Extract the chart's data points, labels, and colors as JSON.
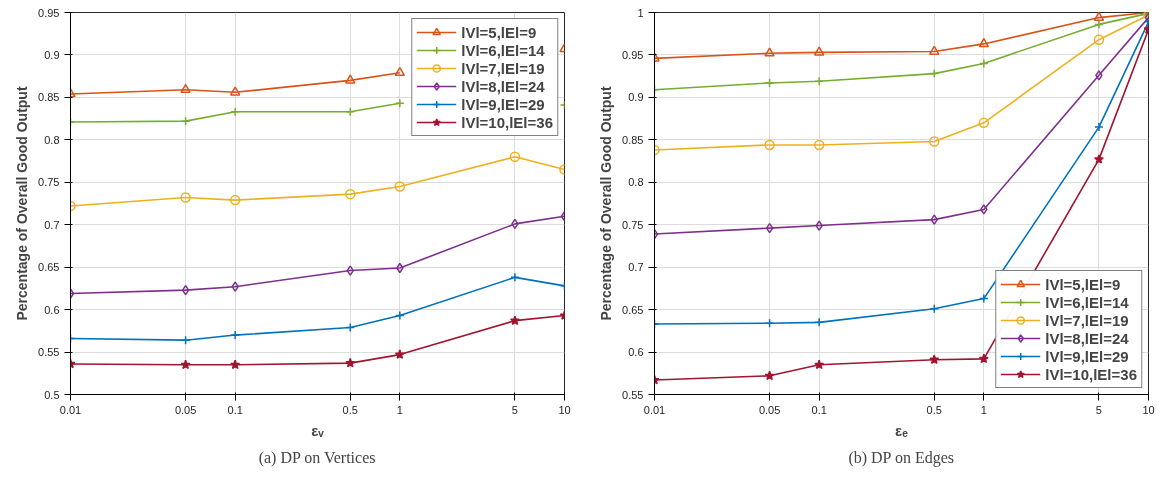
{
  "chart_data": [
    {
      "type": "line",
      "xlabel": "εᵥ",
      "ylabel": "Percentage of Overall Good Output",
      "annotations": [
        "(a) DP on Vertices"
      ],
      "x": [
        0.01,
        0.05,
        0.1,
        0.5,
        1,
        5,
        10
      ],
      "xlim": [
        0.01,
        10
      ],
      "xticks": [
        0.01,
        0.05,
        0.1,
        0.5,
        1,
        5,
        10
      ],
      "log": "x",
      "ylim": [
        0.5,
        0.95
      ],
      "yticks": [
        0.5,
        0.55,
        0.6,
        0.65,
        0.7,
        0.75,
        0.8,
        0.85,
        0.9,
        0.95
      ],
      "grid": true,
      "legend": "top right",
      "series": [
        {
          "name": "lVl=5,lEl=9",
          "color": "#d95319",
          "marker": "triangle",
          "values": [
            0.854,
            0.859,
            0.856,
            0.87,
            0.879,
            null,
            0.907
          ]
        },
        {
          "name": "lVl=6,lEl=14",
          "color": "#77ac30",
          "marker": "cross",
          "values": [
            0.821,
            0.822,
            0.833,
            0.833,
            0.843,
            null,
            0.841
          ]
        },
        {
          "name": "lVl=7,lEl=19",
          "color": "#edb120",
          "marker": "circle",
          "values": [
            0.722,
            0.732,
            0.729,
            0.736,
            0.745,
            0.78,
            0.765
          ]
        },
        {
          "name": "lVl=8,lEl=24",
          "color": "#7e2f8e",
          "marker": "diamond",
          "values": [
            0.619,
            0.623,
            0.627,
            0.646,
            0.649,
            0.701,
            0.71
          ]
        },
        {
          "name": "lVl=9,lEl=29",
          "color": "#0072bd",
          "marker": "cross",
          "values": [
            0.566,
            0.564,
            0.57,
            0.579,
            0.593,
            0.638,
            0.628
          ]
        },
        {
          "name": "lVl=10,lEl=36",
          "color": "#a2142f",
          "marker": "star",
          "values": [
            0.536,
            0.535,
            0.535,
            0.537,
            0.547,
            0.587,
            0.593
          ]
        }
      ]
    },
    {
      "type": "line",
      "xlabel": "εₑ",
      "ylabel": "Percentage of Overall Good Output",
      "annotations": [
        "(b) DP on Edges"
      ],
      "x": [
        0.01,
        0.05,
        0.1,
        0.5,
        1,
        5,
        10
      ],
      "xlim": [
        0.01,
        10
      ],
      "xticks": [
        0.01,
        0.05,
        0.1,
        0.5,
        1,
        5,
        10
      ],
      "log": "x",
      "ylim": [
        0.55,
        1
      ],
      "yticks": [
        0.55,
        0.6,
        0.65,
        0.7,
        0.75,
        0.8,
        0.85,
        0.9,
        0.95,
        1
      ],
      "grid": true,
      "legend": "bottom right",
      "series": [
        {
          "name": "lVl=5,lEl=9",
          "color": "#d95319",
          "marker": "triangle",
          "values": [
            0.946,
            0.952,
            0.953,
            0.954,
            0.963,
            0.994,
            1.0
          ]
        },
        {
          "name": "lVl=6,lEl=14",
          "color": "#77ac30",
          "marker": "cross",
          "values": [
            0.909,
            0.917,
            0.919,
            0.928,
            0.94,
            0.986,
            0.999
          ]
        },
        {
          "name": "lVl=7,lEl=19",
          "color": "#edb120",
          "marker": "circle",
          "values": [
            0.838,
            0.844,
            0.844,
            0.848,
            0.87,
            0.968,
            0.997
          ]
        },
        {
          "name": "lVl=8,lEl=24",
          "color": "#7e2f8e",
          "marker": "diamond",
          "values": [
            0.739,
            0.746,
            0.749,
            0.756,
            0.768,
            0.926,
            0.994
          ]
        },
        {
          "name": "lVl=9,lEl=29",
          "color": "#0072bd",
          "marker": "cross",
          "values": [
            0.633,
            0.634,
            0.635,
            0.651,
            0.663,
            0.865,
            0.989
          ]
        },
        {
          "name": "lVl=10,lEl=36",
          "color": "#a2142f",
          "marker": "star",
          "values": [
            0.567,
            0.572,
            0.585,
            0.591,
            0.592,
            0.827,
            0.98
          ]
        }
      ]
    }
  ]
}
